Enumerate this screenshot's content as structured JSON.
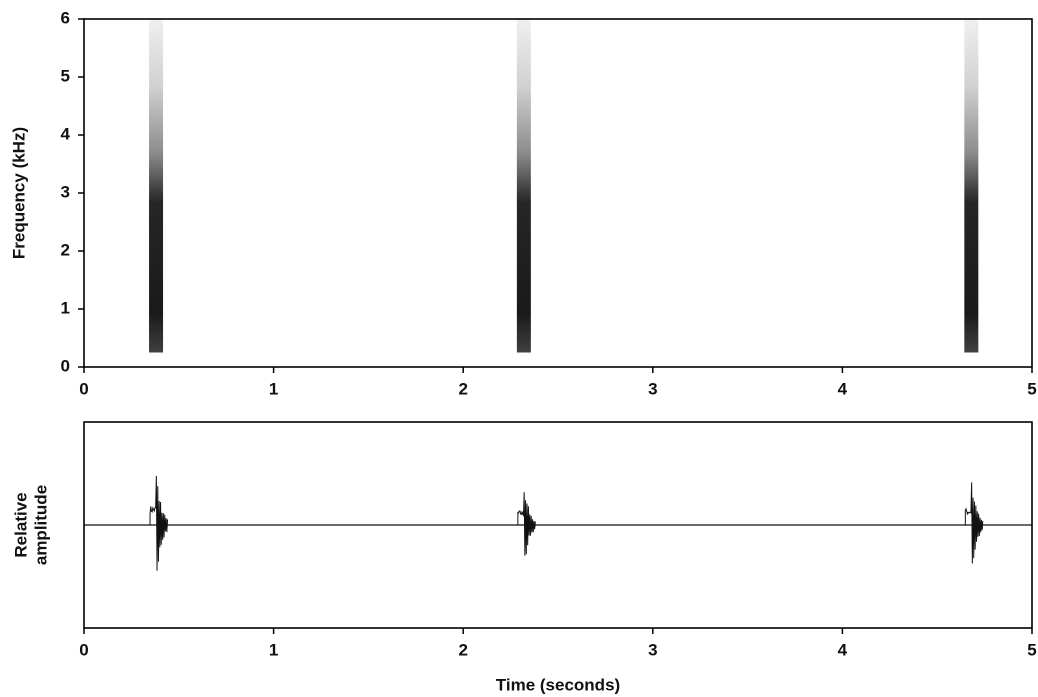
{
  "chart_data": [
    {
      "type": "spectrogram",
      "y_label": "Frequency (kHz)",
      "x": [
        0.38,
        2.32,
        4.68
      ],
      "low": [
        0.25,
        0.25,
        0.25
      ],
      "high": [
        6,
        6,
        6
      ],
      "xlim": [
        0,
        5
      ],
      "xticks": [
        0,
        1,
        2,
        3,
        4,
        5
      ],
      "ylim": [
        0,
        6
      ],
      "yticks": [
        0,
        1,
        2,
        3,
        4,
        5,
        6
      ],
      "color": "#111111"
    },
    {
      "type": "waveform",
      "y_label": [
        "Relative",
        "amplitude"
      ],
      "x_label": "Time (seconds)",
      "x": [
        0.38,
        2.32,
        4.68
      ],
      "values": [
        0.62,
        0.47,
        0.54
      ],
      "xlim": [
        0,
        5
      ],
      "xticks": [
        0,
        1,
        2,
        3,
        4,
        5
      ],
      "ylim": [
        -1,
        1
      ],
      "color": "#111111"
    }
  ]
}
